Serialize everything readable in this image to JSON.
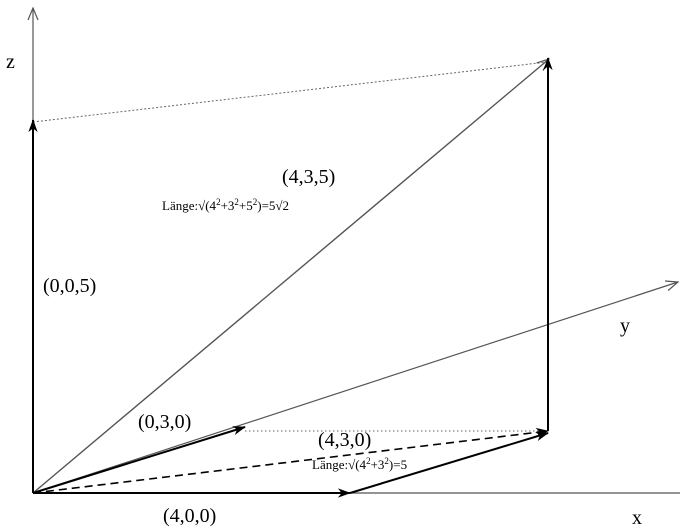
{
  "diagram": {
    "axes": {
      "x": "x",
      "y": "y",
      "z": "z"
    },
    "vectors": {
      "v400": "(4,0,0)",
      "v030": "(0,3,0)",
      "v005": "(0,0,5)",
      "v430": "(4,3,0)",
      "v435": "(4,3,5)"
    },
    "lengths": {
      "len_435_prefix": "Länge:√(4",
      "len_435_mid1": "+3",
      "len_435_mid2": "+5",
      "len_435_suffix": ")=5√2",
      "len_430_prefix": "Länge:√(4",
      "len_430_mid1": "+3",
      "len_430_suffix": ")=5",
      "exp": "2"
    },
    "colors": {
      "ink": "#000000",
      "axis": "#555555",
      "guide": "#666666"
    }
  }
}
